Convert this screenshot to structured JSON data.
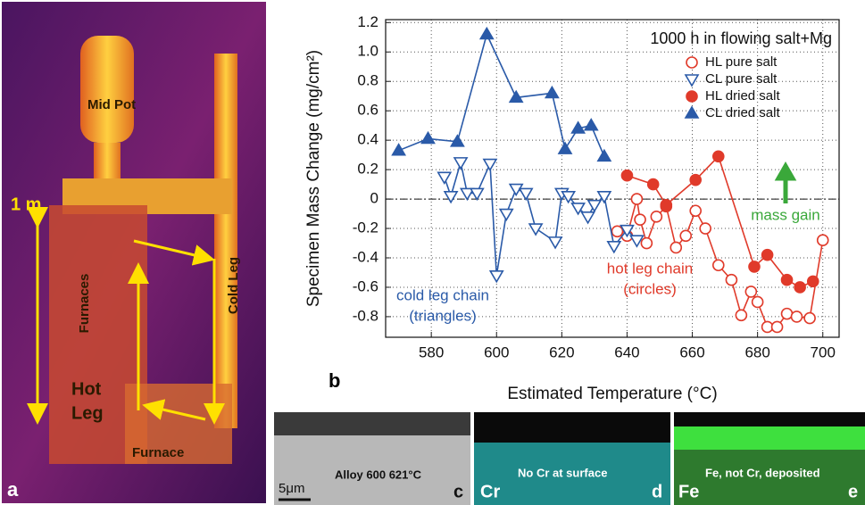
{
  "chart_data": {
    "type": "line",
    "x_label": "Estimated Temperature (°C)",
    "y_label": "Specimen Mass Change (mg/cm²)",
    "panel_label": "b",
    "annotations": {
      "condition": "1000 h in flowing salt+Mg",
      "mass_gain": "mass gain",
      "hot_leg_1": "hot leg chain",
      "hot_leg_2": "(circles)",
      "cold_leg_1": "cold leg chain",
      "cold_leg_2": "(triangles)"
    },
    "xlim": [
      566,
      705
    ],
    "ylim": [
      -0.94,
      1.22
    ],
    "xticks": [
      580,
      600,
      620,
      640,
      660,
      680,
      700
    ],
    "yticks": [
      1.2,
      {
        "value": 1.0,
        "label": "1.0"
      },
      0.8,
      0.6,
      0.4,
      0.2,
      0,
      -0.2,
      -0.4,
      -0.6,
      -0.8
    ],
    "grid": true,
    "legend": "top-right",
    "series": [
      {
        "name": "HL pure salt",
        "color": "#e03a2a",
        "marker": "circle-open",
        "x": [
          637,
          640,
          643,
          644,
          646,
          649,
          652,
          655,
          658,
          661,
          664,
          668,
          672,
          675,
          678,
          680,
          683,
          686,
          689,
          692,
          696,
          700
        ],
        "values": [
          -0.22,
          -0.25,
          0.0,
          -0.14,
          -0.3,
          -0.12,
          -0.05,
          -0.33,
          -0.25,
          -0.08,
          -0.2,
          -0.45,
          -0.55,
          -0.79,
          -0.63,
          -0.7,
          -0.87,
          -0.87,
          -0.78,
          -0.8,
          -0.81,
          -0.28
        ]
      },
      {
        "name": "CL pure salt",
        "color": "#2a5aa8",
        "marker": "triangle-down-open",
        "x": [
          584,
          586,
          589,
          591,
          594,
          598,
          600,
          603,
          606,
          609,
          612,
          618,
          620,
          622,
          625,
          628,
          630,
          633,
          636,
          640,
          643
        ],
        "values": [
          0.15,
          0.02,
          0.25,
          0.04,
          0.04,
          0.24,
          -0.52,
          -0.1,
          0.07,
          0.04,
          -0.2,
          -0.29,
          0.04,
          0.02,
          -0.06,
          -0.12,
          -0.04,
          0.02,
          -0.32,
          -0.21,
          -0.28
        ]
      },
      {
        "name": "HL dried salt",
        "color": "#e03a2a",
        "marker": "circle-filled",
        "x": [
          640,
          648,
          652,
          661,
          668,
          679,
          683,
          689,
          693,
          697
        ],
        "values": [
          0.16,
          0.1,
          -0.04,
          0.13,
          0.29,
          -0.46,
          -0.38,
          -0.55,
          -0.6,
          -0.56
        ]
      },
      {
        "name": "CL dried salt",
        "color": "#2a5aa8",
        "marker": "triangle-up-filled",
        "x": [
          570,
          579,
          588,
          597,
          606,
          617,
          621,
          625,
          629,
          633
        ],
        "values": [
          0.33,
          0.41,
          0.39,
          1.12,
          0.69,
          0.72,
          0.34,
          0.48,
          0.5,
          0.29
        ]
      }
    ]
  },
  "panel_a": {
    "label": "a",
    "mid_pot": "Mid Pot",
    "scale": "1 m",
    "furnaces": "Furnaces",
    "cold_leg": "Cold Leg",
    "hot_leg_1": "Hot",
    "hot_leg_2": "Leg",
    "furnace": "Furnace"
  },
  "micrographs": [
    {
      "caption": "Alloy 600  621°C",
      "scale_bar": "5μm",
      "label": "c"
    },
    {
      "caption": "No Cr at surface",
      "element": "Cr",
      "label": "d"
    },
    {
      "caption": "Fe, not Cr, deposited",
      "element": "Fe",
      "label": "e"
    }
  ]
}
